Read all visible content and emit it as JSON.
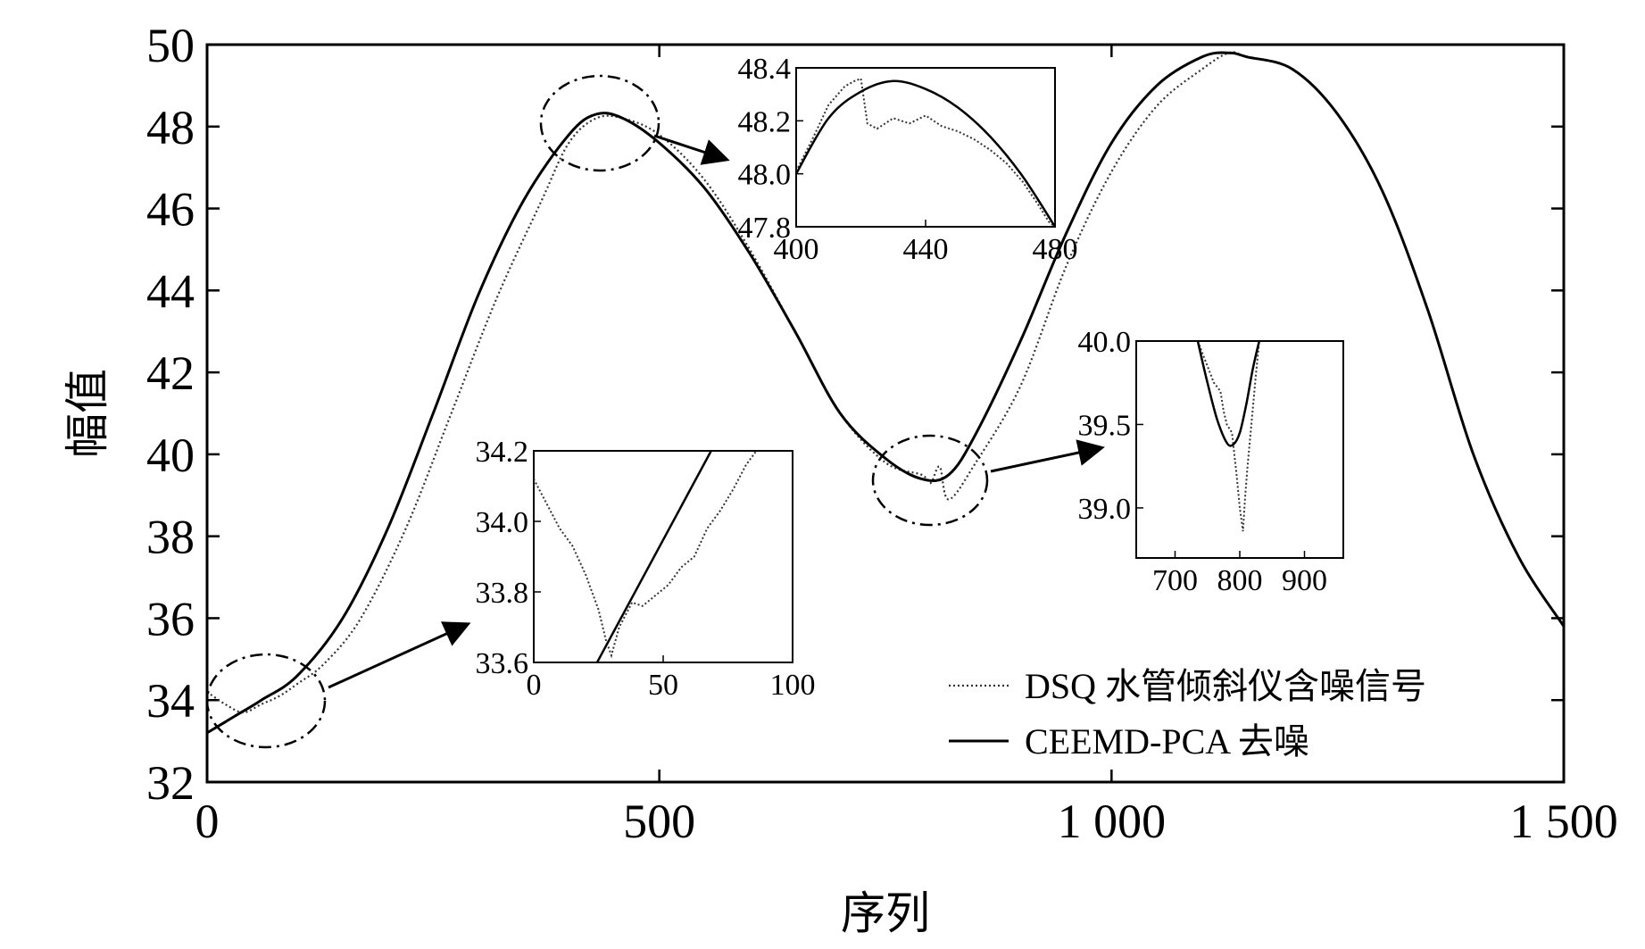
{
  "chart_data": {
    "type": "line",
    "title": "",
    "xlabel": "序列",
    "ylabel": "幅值",
    "xlim": [
      0,
      1500
    ],
    "ylim": [
      32,
      50
    ],
    "xticks": [
      0,
      500,
      1000,
      1500
    ],
    "xtick_labels": [
      "0",
      "500",
      "1 000",
      "1 500"
    ],
    "yticks": [
      32,
      34,
      36,
      38,
      40,
      42,
      44,
      46,
      48,
      50
    ],
    "ytick_labels": [
      "32",
      "34",
      "36",
      "38",
      "40",
      "42",
      "44",
      "46",
      "48",
      "50"
    ],
    "grid": false,
    "legend_position": "bottom-right",
    "series": [
      {
        "name": "DSQ 水管倾斜仪含噪信号",
        "style": "dotted",
        "color": "#333333",
        "x": [
          0,
          20,
          40,
          60,
          80,
          100,
          130,
          170,
          220,
          270,
          320,
          370,
          400,
          430,
          460,
          500,
          550,
          600,
          650,
          700,
          750,
          790,
          800,
          810,
          820,
          850,
          900,
          950,
          1000,
          1050,
          1100,
          1130,
          1150,
          1200,
          1250,
          1300,
          1350,
          1400,
          1450,
          1500
        ],
        "y": [
          34.2,
          33.9,
          33.7,
          33.9,
          34.1,
          34.4,
          34.9,
          36.0,
          38.2,
          41.0,
          43.8,
          46.2,
          47.6,
          48.2,
          48.2,
          47.8,
          46.7,
          45.0,
          43.0,
          41.0,
          39.8,
          39.5,
          39.3,
          39.7,
          38.9,
          39.8,
          41.7,
          44.6,
          46.9,
          48.5,
          49.4,
          49.8,
          49.7,
          49.4,
          48.3,
          46.4,
          43.5,
          40.0,
          37.5,
          35.8
        ]
      },
      {
        "name": "CEEMD-PCA 去噪",
        "style": "solid",
        "color": "#000000",
        "x": [
          0,
          30,
          60,
          100,
          150,
          200,
          250,
          300,
          350,
          400,
          430,
          460,
          500,
          550,
          600,
          650,
          700,
          750,
          790,
          820,
          850,
          900,
          950,
          1000,
          1050,
          1100,
          1130,
          1150,
          1200,
          1250,
          1300,
          1350,
          1400,
          1450,
          1500
        ],
        "y": [
          33.2,
          33.6,
          34.0,
          34.6,
          36.0,
          38.2,
          41.0,
          43.9,
          46.2,
          47.8,
          48.3,
          48.2,
          47.6,
          46.5,
          44.9,
          43.0,
          41.0,
          39.9,
          39.4,
          39.5,
          40.5,
          42.8,
          45.4,
          47.6,
          49.0,
          49.7,
          49.8,
          49.7,
          49.4,
          48.3,
          46.4,
          43.5,
          40.0,
          37.5,
          35.8
        ]
      }
    ],
    "inset_zoom_regions": [
      {
        "name": "inset-1",
        "x_range": [
          0,
          100
        ],
        "y_range": [
          33.6,
          34.2
        ]
      },
      {
        "name": "inset-2",
        "x_range": [
          400,
          480
        ],
        "y_range": [
          47.8,
          48.4
        ]
      },
      {
        "name": "inset-3",
        "x_range": [
          700,
          900
        ],
        "y_range": [
          39.0,
          40.0
        ]
      }
    ],
    "insets": [
      {
        "name": "inset-low",
        "xlim": [
          0,
          100
        ],
        "ylim": [
          33.6,
          34.2
        ],
        "xtick_values": [
          0,
          50,
          100
        ],
        "xtick_labels": [
          "0",
          "50",
          "100"
        ],
        "ytick_values": [
          33.6,
          33.8,
          34.0,
          34.2
        ],
        "ytick_labels": [
          "33.6",
          "33.8",
          "34.0",
          "34.2"
        ],
        "noisy": {
          "x": [
            0,
            5,
            10,
            15,
            20,
            25,
            28,
            30,
            33,
            38,
            42,
            47,
            52,
            57,
            62,
            67,
            72,
            77,
            82,
            87
          ],
          "y": [
            34.12,
            34.05,
            33.98,
            33.93,
            33.85,
            33.75,
            33.66,
            33.62,
            33.7,
            33.77,
            33.76,
            33.79,
            33.82,
            33.87,
            33.9,
            33.98,
            34.03,
            34.09,
            34.16,
            34.21
          ]
        },
        "denoised": {
          "x": [
            23,
            70
          ],
          "y": [
            33.58,
            34.22
          ]
        }
      },
      {
        "name": "inset-peak",
        "xlim": [
          400,
          480
        ],
        "ylim": [
          47.8,
          48.4
        ],
        "xtick_values": [
          400,
          440,
          480
        ],
        "xtick_labels": [
          "400",
          "440",
          "480"
        ],
        "ytick_values": [
          47.8,
          48.0,
          48.2,
          48.4
        ],
        "ytick_labels": [
          "47.8",
          "48.0",
          "48.2",
          "48.4"
        ],
        "noisy": {
          "x": [
            400,
            405,
            410,
            415,
            418,
            420,
            422,
            425,
            430,
            435,
            440,
            445,
            450,
            455,
            460,
            465,
            470,
            475,
            478,
            480,
            481,
            482
          ],
          "y": [
            48.01,
            48.13,
            48.26,
            48.33,
            48.35,
            48.36,
            48.19,
            48.17,
            48.21,
            48.19,
            48.22,
            48.18,
            48.16,
            48.13,
            48.09,
            48.04,
            47.97,
            47.88,
            47.82,
            47.8,
            47.99,
            47.8
          ]
        },
        "denoised": {
          "x": [
            400,
            410,
            420,
            430,
            440,
            450,
            460,
            470,
            480
          ],
          "y": [
            48.0,
            48.21,
            48.31,
            48.35,
            48.32,
            48.25,
            48.14,
            47.99,
            47.8
          ]
        }
      },
      {
        "name": "inset-trough",
        "xlim": [
          640,
          960
        ],
        "ylim": [
          38.7,
          40.0
        ],
        "xtick_values": [
          700,
          800,
          900
        ],
        "xtick_labels": [
          "700",
          "800",
          "900"
        ],
        "ytick_values": [
          39.0,
          39.5,
          40.0
        ],
        "ytick_labels": [
          "39.0",
          "39.5",
          "40.0"
        ],
        "noisy": {
          "x": [
            735,
            745,
            760,
            770,
            775,
            780,
            788,
            795,
            800,
            805,
            808,
            812,
            818,
            825,
            830
          ],
          "y": [
            40.0,
            39.9,
            39.75,
            39.7,
            39.58,
            39.5,
            39.45,
            39.2,
            39.0,
            38.86,
            39.05,
            39.25,
            39.5,
            39.8,
            40.0
          ]
        },
        "denoised": {
          "x": [
            735,
            750,
            765,
            780,
            790,
            800,
            810,
            820,
            830
          ],
          "y": [
            40.0,
            39.75,
            39.53,
            39.39,
            39.38,
            39.45,
            39.62,
            39.83,
            40.0
          ]
        }
      }
    ]
  }
}
